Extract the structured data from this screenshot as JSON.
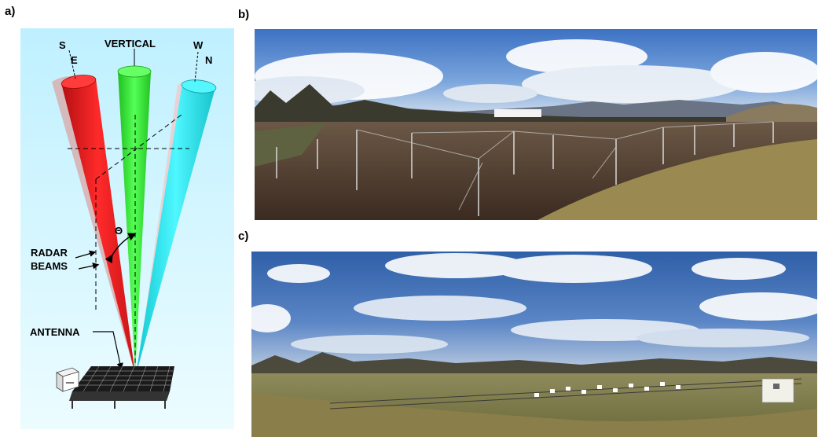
{
  "panels": {
    "a": {
      "label": "a)",
      "diagram": {
        "beam_labels": {
          "left_top": "S",
          "left_bottom": "E",
          "center": "VERTICAL",
          "right_top": "W",
          "right_bottom": "N"
        },
        "angle_symbol": "Θ",
        "radar_label_line1": "RADAR",
        "radar_label_line2": "BEAMS",
        "antenna_label": "ANTENNA",
        "colors": {
          "background_top": "#c2f2ff",
          "background_bottom": "#eafbff",
          "left_beam": "#e4191c",
          "center_beam": "#34e634",
          "right_beam": "#2ee6ee"
        }
      }
    },
    "b": {
      "label": "b)",
      "photo": "antenna-field-panorama-brown-ground"
    },
    "c": {
      "label": "c)",
      "photo": "antenna-field-panorama-green-field"
    }
  }
}
